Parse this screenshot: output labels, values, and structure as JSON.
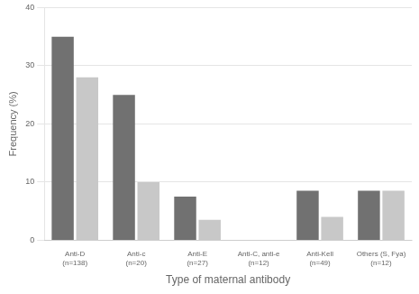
{
  "chart_data": {
    "type": "bar",
    "categories": [
      "Anti-D\n(n=138)",
      "Anti-c\n(n=20)",
      "Anti-E\n(n=27)",
      "Anti-C, anti-e\n(n=12)",
      "Anti-Kell\n(n=49)",
      "Others (S, Fya)\n(n=12)"
    ],
    "series": [
      {
        "color": "#717171",
        "values": [
          35,
          25,
          7.5,
          0,
          8.5,
          8.5
        ]
      },
      {
        "color": "#c8c8c8",
        "values": [
          28,
          10,
          3.5,
          0,
          4.0,
          8.5
        ]
      }
    ],
    "xlabel": "Type of maternal antibody",
    "ylabel": "Frequency (%)",
    "ylim": [
      0,
      40
    ],
    "yticks": [
      0,
      10,
      20,
      30,
      40
    ],
    "grid": true
  }
}
